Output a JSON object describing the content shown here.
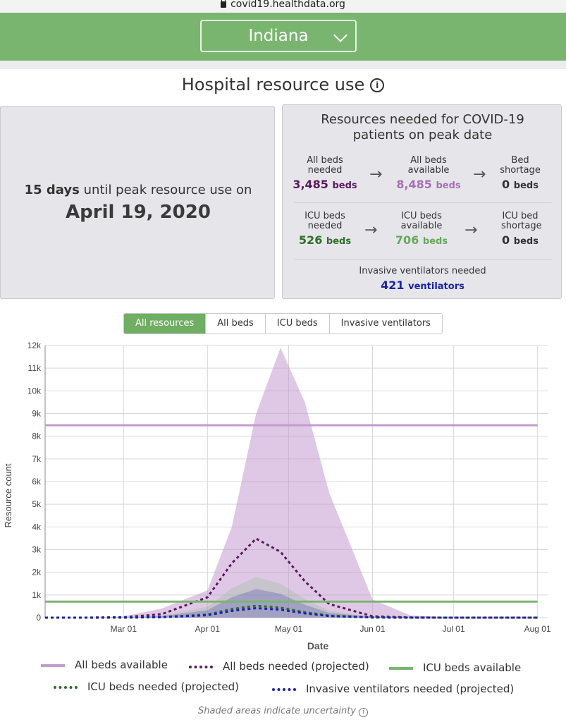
{
  "browser": {
    "url": "covid19.healthdata.org"
  },
  "header": {
    "selected_state": "Indiana"
  },
  "page": {
    "title": "Hospital resource use"
  },
  "peak": {
    "days_value": "15 days",
    "days_text": "until peak resource use on",
    "date": "April 19, 2020"
  },
  "resources": {
    "title_line1": "Resources needed for COVID-19",
    "title_line2": "patients on peak date",
    "all_beds_needed_label": "All beds needed",
    "all_beds_needed_value": "3,485",
    "all_beds_available_label": "All beds available",
    "all_beds_available_value": "8,485",
    "bed_shortage_label": "Bed shortage",
    "bed_shortage_value": "0",
    "icu_beds_needed_label": "ICU beds needed",
    "icu_beds_needed_value": "526",
    "icu_beds_available_label": "ICU beds available",
    "icu_beds_available_value": "706",
    "icu_bed_shortage_label": "ICU bed shortage",
    "icu_bed_shortage_value": "0",
    "beds_unit": "beds",
    "ventilators_label": "Invasive ventilators needed",
    "ventilators_value": "421",
    "ventilators_unit": "ventilators"
  },
  "tabs": [
    "All resources",
    "All beds",
    "ICU beds",
    "Invasive ventilators"
  ],
  "active_tab": "All resources",
  "footnote": "Shaded areas indicate uncertainty",
  "colors": {
    "green": "#7ab570",
    "purple": "#c39ad0",
    "dark_purple": "#5b1a5e",
    "dark_green": "#2f6e2a",
    "blue": "#1a22a8",
    "light_purple_value": "#a86fb8",
    "light_green_value": "#6aa65f"
  },
  "chart_data": {
    "type": "line",
    "xlabel": "Date",
    "ylabel": "Resource count",
    "ylim": [
      0,
      12000
    ],
    "yticks": [
      "0",
      "1k",
      "2k",
      "3k",
      "4k",
      "5k",
      "6k",
      "7k",
      "8k",
      "9k",
      "10k",
      "11k",
      "12k"
    ],
    "xticks": [
      "Mar 01",
      "Apr 01",
      "May 01",
      "Jun 01",
      "Jul 01",
      "Aug 01"
    ],
    "x": [
      "Feb 01",
      "Feb 15",
      "Mar 01",
      "Mar 15",
      "Apr 01",
      "Apr 10",
      "Apr 19",
      "Apr 28",
      "May 07",
      "May 16",
      "Jun 01",
      "Jun 15",
      "Jul 01",
      "Jul 15",
      "Aug 01"
    ],
    "series": [
      {
        "name": "All beds available",
        "style": "solid",
        "color": "#c39ad0",
        "values": [
          8485,
          8485,
          8485,
          8485,
          8485,
          8485,
          8485,
          8485,
          8485,
          8485,
          8485,
          8485,
          8485,
          8485,
          8485
        ]
      },
      {
        "name": "All beds needed (projected)",
        "style": "dotted",
        "color": "#5b1a5e",
        "values": [
          0,
          0,
          20,
          150,
          900,
          2400,
          3485,
          2900,
          1600,
          600,
          60,
          5,
          0,
          0,
          0
        ]
      },
      {
        "name": "ICU beds available",
        "style": "solid",
        "color": "#7ab570",
        "values": [
          706,
          706,
          706,
          706,
          706,
          706,
          706,
          706,
          706,
          706,
          706,
          706,
          706,
          706,
          706
        ]
      },
      {
        "name": "ICU beds needed (projected)",
        "style": "dotted",
        "color": "#2f6e2a",
        "values": [
          0,
          0,
          5,
          25,
          140,
          380,
          526,
          440,
          240,
          90,
          10,
          0,
          0,
          0,
          0
        ]
      },
      {
        "name": "Invasive ventilators needed (projected)",
        "style": "dotted",
        "color": "#1a22a8",
        "values": [
          0,
          0,
          4,
          20,
          110,
          300,
          421,
          350,
          190,
          70,
          8,
          0,
          0,
          0,
          0
        ]
      }
    ],
    "uncertainty_all_beds_upper": [
      0,
      0,
      50,
      400,
      1200,
      4000,
      9000,
      11900,
      9500,
      5500,
      800,
      100,
      0,
      0,
      0
    ],
    "legend": "bottom"
  }
}
